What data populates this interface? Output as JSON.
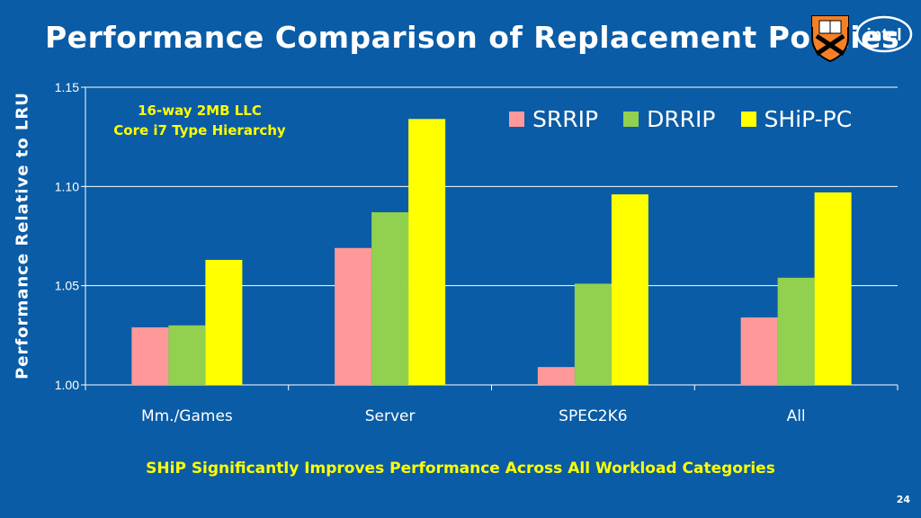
{
  "slide": {
    "title": "Performance Comparison of Replacement Policies",
    "footer_note": "SHiP Significantly Improves Performance Across All Workload Categories",
    "slide_number": "24",
    "logos": [
      "princeton-shield-icon",
      "intel-logo-icon"
    ],
    "logo_text": {
      "intel": "intel"
    }
  },
  "annotation": {
    "line1": "16-way 2MB LLC",
    "line2": "Core i7 Type Hierarchy"
  },
  "colors": {
    "background": "#0a5ca6",
    "srrip": "#ff9999",
    "drrip": "#92d050",
    "ship_pc": "#ffff00",
    "annotation_text": "#ffff00"
  },
  "chart_data": {
    "type": "bar",
    "title": "",
    "xlabel": "",
    "ylabel": "Performance Relative to LRU",
    "categories": [
      "Mm./Games",
      "Server",
      "SPEC2K6",
      "All"
    ],
    "series": [
      {
        "name": "SRRIP",
        "color": "#ff9999",
        "values": [
          1.029,
          1.069,
          1.009,
          1.034
        ]
      },
      {
        "name": "DRRIP",
        "color": "#92d050",
        "values": [
          1.03,
          1.087,
          1.051,
          1.054
        ]
      },
      {
        "name": "SHiP-PC",
        "color": "#ffff00",
        "values": [
          1.063,
          1.134,
          1.096,
          1.097
        ]
      }
    ],
    "ylim": [
      1.0,
      1.15
    ],
    "yticks": [
      "1.00",
      "1.05",
      "1.10",
      "1.15"
    ],
    "grid": true,
    "legend": "top-right"
  }
}
